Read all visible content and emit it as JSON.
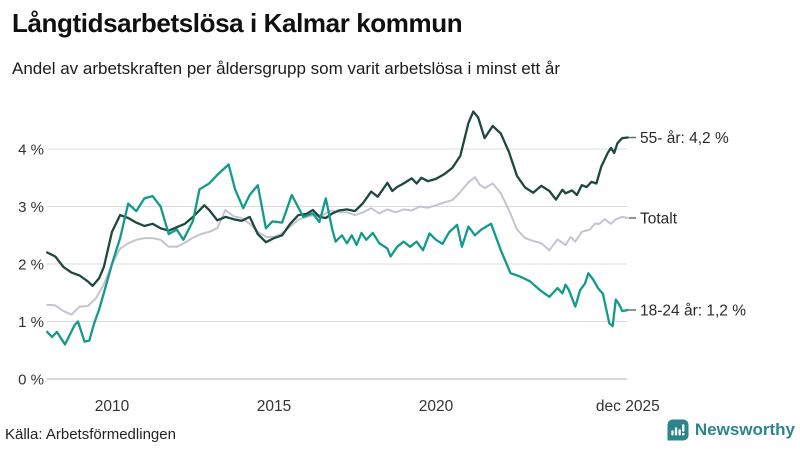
{
  "header": {
    "title": "Långtidsarbetslösa i Kalmar kommun",
    "subtitle": "Andel av arbetskraften per åldersgrupp som varit arbetslösa i minst ett år"
  },
  "footer": {
    "source": "Källa: Arbetsförmedlingen",
    "brand": "Newsworthy"
  },
  "colors": {
    "series_55": "#1d473f",
    "series_total": "#c6c3d1",
    "series_1824": "#149a8b",
    "grid": "#dcdcdc",
    "baseline": "#b5b5b5",
    "leader_dash": "#666666",
    "brand_teal": "#2c858b"
  },
  "chart_data": {
    "type": "line",
    "title": "Långtidsarbetslösa i Kalmar kommun",
    "subtitle": "Andel av arbetskraften per åldersgrupp som varit arbetslösa i minst ett år",
    "xlabel": "",
    "ylabel": "",
    "xlim": [
      2008,
      2025.92
    ],
    "ylim": [
      0,
      4.7
    ],
    "grid": "horizontal",
    "legend_position": "line-end-labels",
    "yticks": [
      {
        "v": 0,
        "label": "0 %"
      },
      {
        "v": 1,
        "label": "1 %"
      },
      {
        "v": 2,
        "label": "2 %"
      },
      {
        "v": 3,
        "label": "3 %"
      },
      {
        "v": 4,
        "label": "4 %"
      }
    ],
    "xticks": [
      {
        "v": 2010,
        "label": "2010"
      },
      {
        "v": 2015,
        "label": "2015"
      },
      {
        "v": 2020,
        "label": "2020"
      },
      {
        "v": 2025.92,
        "label": "dec 2025"
      }
    ],
    "series": [
      {
        "name": "55- år",
        "end_label": "55- år: 4,2 %",
        "end_value": "4,2 %",
        "color": "#1d473f",
        "points": [
          [
            2008.0,
            2.2
          ],
          [
            2008.25,
            2.13
          ],
          [
            2008.5,
            1.95
          ],
          [
            2008.75,
            1.85
          ],
          [
            2009.0,
            1.8
          ],
          [
            2009.25,
            1.7
          ],
          [
            2009.4,
            1.62
          ],
          [
            2009.6,
            1.75
          ],
          [
            2009.75,
            1.95
          ],
          [
            2010.0,
            2.56
          ],
          [
            2010.25,
            2.85
          ],
          [
            2010.5,
            2.8
          ],
          [
            2010.75,
            2.72
          ],
          [
            2011.0,
            2.66
          ],
          [
            2011.25,
            2.7
          ],
          [
            2011.5,
            2.62
          ],
          [
            2011.75,
            2.58
          ],
          [
            2012.0,
            2.64
          ],
          [
            2012.25,
            2.7
          ],
          [
            2012.5,
            2.82
          ],
          [
            2012.85,
            3.02
          ],
          [
            2013.0,
            2.94
          ],
          [
            2013.25,
            2.76
          ],
          [
            2013.5,
            2.82
          ],
          [
            2013.75,
            2.78
          ],
          [
            2014.0,
            2.75
          ],
          [
            2014.25,
            2.82
          ],
          [
            2014.5,
            2.52
          ],
          [
            2014.75,
            2.38
          ],
          [
            2015.0,
            2.45
          ],
          [
            2015.25,
            2.5
          ],
          [
            2015.5,
            2.7
          ],
          [
            2015.75,
            2.85
          ],
          [
            2016.0,
            2.87
          ],
          [
            2016.2,
            2.94
          ],
          [
            2016.4,
            2.82
          ],
          [
            2016.6,
            2.8
          ],
          [
            2016.8,
            2.88
          ],
          [
            2017.0,
            2.93
          ],
          [
            2017.25,
            2.95
          ],
          [
            2017.5,
            2.92
          ],
          [
            2017.75,
            3.06
          ],
          [
            2018.0,
            3.26
          ],
          [
            2018.2,
            3.17
          ],
          [
            2018.5,
            3.41
          ],
          [
            2018.65,
            3.27
          ],
          [
            2018.8,
            3.34
          ],
          [
            2019.0,
            3.4
          ],
          [
            2019.25,
            3.49
          ],
          [
            2019.4,
            3.4
          ],
          [
            2019.55,
            3.5
          ],
          [
            2019.75,
            3.44
          ],
          [
            2020.0,
            3.48
          ],
          [
            2020.25,
            3.56
          ],
          [
            2020.5,
            3.67
          ],
          [
            2020.75,
            3.88
          ],
          [
            2021.0,
            4.45
          ],
          [
            2021.15,
            4.65
          ],
          [
            2021.3,
            4.55
          ],
          [
            2021.5,
            4.19
          ],
          [
            2021.75,
            4.4
          ],
          [
            2022.0,
            4.27
          ],
          [
            2022.25,
            3.95
          ],
          [
            2022.5,
            3.53
          ],
          [
            2022.75,
            3.33
          ],
          [
            2023.0,
            3.24
          ],
          [
            2023.25,
            3.36
          ],
          [
            2023.5,
            3.27
          ],
          [
            2023.7,
            3.12
          ],
          [
            2023.9,
            3.29
          ],
          [
            2024.0,
            3.23
          ],
          [
            2024.2,
            3.28
          ],
          [
            2024.35,
            3.2
          ],
          [
            2024.5,
            3.37
          ],
          [
            2024.65,
            3.34
          ],
          [
            2024.8,
            3.43
          ],
          [
            2024.95,
            3.4
          ],
          [
            2025.1,
            3.69
          ],
          [
            2025.3,
            3.93
          ],
          [
            2025.4,
            4.02
          ],
          [
            2025.5,
            3.93
          ],
          [
            2025.6,
            4.1
          ],
          [
            2025.75,
            4.19
          ],
          [
            2025.92,
            4.2
          ]
        ]
      },
      {
        "name": "Totalt",
        "end_label": "Totalt",
        "end_value": "2,8 %",
        "color": "#c6c3d1",
        "points": [
          [
            2008.0,
            1.29
          ],
          [
            2008.25,
            1.28
          ],
          [
            2008.5,
            1.18
          ],
          [
            2008.75,
            1.12
          ],
          [
            2009.0,
            1.26
          ],
          [
            2009.25,
            1.27
          ],
          [
            2009.5,
            1.4
          ],
          [
            2009.75,
            1.65
          ],
          [
            2010.0,
            2.0
          ],
          [
            2010.25,
            2.27
          ],
          [
            2010.5,
            2.36
          ],
          [
            2010.75,
            2.42
          ],
          [
            2011.0,
            2.45
          ],
          [
            2011.25,
            2.45
          ],
          [
            2011.5,
            2.42
          ],
          [
            2011.75,
            2.3
          ],
          [
            2012.0,
            2.3
          ],
          [
            2012.25,
            2.37
          ],
          [
            2012.5,
            2.46
          ],
          [
            2012.75,
            2.52
          ],
          [
            2013.0,
            2.56
          ],
          [
            2013.25,
            2.62
          ],
          [
            2013.5,
            2.94
          ],
          [
            2013.75,
            2.83
          ],
          [
            2014.0,
            2.8
          ],
          [
            2014.25,
            2.7
          ],
          [
            2014.5,
            2.56
          ],
          [
            2014.75,
            2.47
          ],
          [
            2015.0,
            2.47
          ],
          [
            2015.25,
            2.53
          ],
          [
            2015.5,
            2.65
          ],
          [
            2015.75,
            2.77
          ],
          [
            2016.0,
            2.82
          ],
          [
            2016.25,
            2.85
          ],
          [
            2016.5,
            2.85
          ],
          [
            2016.75,
            2.93
          ],
          [
            2017.0,
            2.9
          ],
          [
            2017.25,
            2.9
          ],
          [
            2017.5,
            2.85
          ],
          [
            2017.75,
            2.9
          ],
          [
            2018.0,
            2.97
          ],
          [
            2018.25,
            2.88
          ],
          [
            2018.5,
            2.95
          ],
          [
            2018.75,
            2.9
          ],
          [
            2019.0,
            2.95
          ],
          [
            2019.25,
            2.93
          ],
          [
            2019.5,
            3.0
          ],
          [
            2019.75,
            2.98
          ],
          [
            2020.0,
            3.02
          ],
          [
            2020.25,
            3.07
          ],
          [
            2020.5,
            3.11
          ],
          [
            2020.75,
            3.25
          ],
          [
            2021.0,
            3.42
          ],
          [
            2021.2,
            3.51
          ],
          [
            2021.35,
            3.38
          ],
          [
            2021.5,
            3.32
          ],
          [
            2021.75,
            3.4
          ],
          [
            2022.0,
            3.23
          ],
          [
            2022.25,
            2.94
          ],
          [
            2022.5,
            2.6
          ],
          [
            2022.75,
            2.45
          ],
          [
            2023.0,
            2.4
          ],
          [
            2023.25,
            2.36
          ],
          [
            2023.5,
            2.24
          ],
          [
            2023.75,
            2.43
          ],
          [
            2024.0,
            2.33
          ],
          [
            2024.15,
            2.47
          ],
          [
            2024.3,
            2.39
          ],
          [
            2024.5,
            2.56
          ],
          [
            2024.75,
            2.6
          ],
          [
            2024.9,
            2.7
          ],
          [
            2025.05,
            2.7
          ],
          [
            2025.2,
            2.78
          ],
          [
            2025.4,
            2.7
          ],
          [
            2025.55,
            2.78
          ],
          [
            2025.75,
            2.82
          ],
          [
            2025.92,
            2.8
          ]
        ]
      },
      {
        "name": "18-24 år",
        "end_label": "18-24 år: 1,2 %",
        "end_value": "1,2 %",
        "color": "#149a8b",
        "points": [
          [
            2008.0,
            0.82
          ],
          [
            2008.15,
            0.73
          ],
          [
            2008.3,
            0.82
          ],
          [
            2008.55,
            0.6
          ],
          [
            2008.85,
            0.94
          ],
          [
            2008.95,
            1.0
          ],
          [
            2009.15,
            0.65
          ],
          [
            2009.3,
            0.67
          ],
          [
            2009.45,
            0.97
          ],
          [
            2009.6,
            1.2
          ],
          [
            2009.75,
            1.5
          ],
          [
            2010.0,
            2.0
          ],
          [
            2010.25,
            2.45
          ],
          [
            2010.5,
            3.05
          ],
          [
            2010.75,
            2.92
          ],
          [
            2011.0,
            3.14
          ],
          [
            2011.25,
            3.18
          ],
          [
            2011.5,
            3.0
          ],
          [
            2011.75,
            2.52
          ],
          [
            2012.0,
            2.6
          ],
          [
            2012.2,
            2.42
          ],
          [
            2012.5,
            2.75
          ],
          [
            2012.7,
            3.3
          ],
          [
            2013.0,
            3.4
          ],
          [
            2013.25,
            3.55
          ],
          [
            2013.6,
            3.73
          ],
          [
            2013.8,
            3.3
          ],
          [
            2014.05,
            2.97
          ],
          [
            2014.25,
            3.2
          ],
          [
            2014.5,
            3.37
          ],
          [
            2014.75,
            2.62
          ],
          [
            2014.95,
            2.74
          ],
          [
            2015.25,
            2.72
          ],
          [
            2015.55,
            3.2
          ],
          [
            2015.9,
            2.82
          ],
          [
            2016.2,
            2.88
          ],
          [
            2016.4,
            2.73
          ],
          [
            2016.6,
            3.14
          ],
          [
            2016.8,
            2.6
          ],
          [
            2016.9,
            2.39
          ],
          [
            2017.1,
            2.5
          ],
          [
            2017.25,
            2.36
          ],
          [
            2017.4,
            2.5
          ],
          [
            2017.55,
            2.33
          ],
          [
            2017.7,
            2.54
          ],
          [
            2017.85,
            2.42
          ],
          [
            2018.05,
            2.54
          ],
          [
            2018.25,
            2.36
          ],
          [
            2018.5,
            2.27
          ],
          [
            2018.6,
            2.13
          ],
          [
            2018.8,
            2.3
          ],
          [
            2019.0,
            2.39
          ],
          [
            2019.2,
            2.3
          ],
          [
            2019.4,
            2.39
          ],
          [
            2019.6,
            2.24
          ],
          [
            2019.8,
            2.53
          ],
          [
            2020.0,
            2.42
          ],
          [
            2020.2,
            2.35
          ],
          [
            2020.4,
            2.55
          ],
          [
            2020.65,
            2.68
          ],
          [
            2020.8,
            2.3
          ],
          [
            2021.0,
            2.65
          ],
          [
            2021.2,
            2.5
          ],
          [
            2021.4,
            2.6
          ],
          [
            2021.7,
            2.7
          ],
          [
            2022.0,
            2.24
          ],
          [
            2022.3,
            1.84
          ],
          [
            2022.6,
            1.78
          ],
          [
            2022.9,
            1.7
          ],
          [
            2023.2,
            1.55
          ],
          [
            2023.5,
            1.43
          ],
          [
            2023.75,
            1.58
          ],
          [
            2023.9,
            1.49
          ],
          [
            2024.0,
            1.64
          ],
          [
            2024.1,
            1.55
          ],
          [
            2024.3,
            1.26
          ],
          [
            2024.45,
            1.55
          ],
          [
            2024.6,
            1.66
          ],
          [
            2024.7,
            1.84
          ],
          [
            2024.85,
            1.73
          ],
          [
            2025.0,
            1.58
          ],
          [
            2025.15,
            1.48
          ],
          [
            2025.35,
            0.97
          ],
          [
            2025.45,
            0.92
          ],
          [
            2025.55,
            1.38
          ],
          [
            2025.65,
            1.3
          ],
          [
            2025.75,
            1.18
          ],
          [
            2025.92,
            1.2
          ]
        ]
      }
    ]
  }
}
